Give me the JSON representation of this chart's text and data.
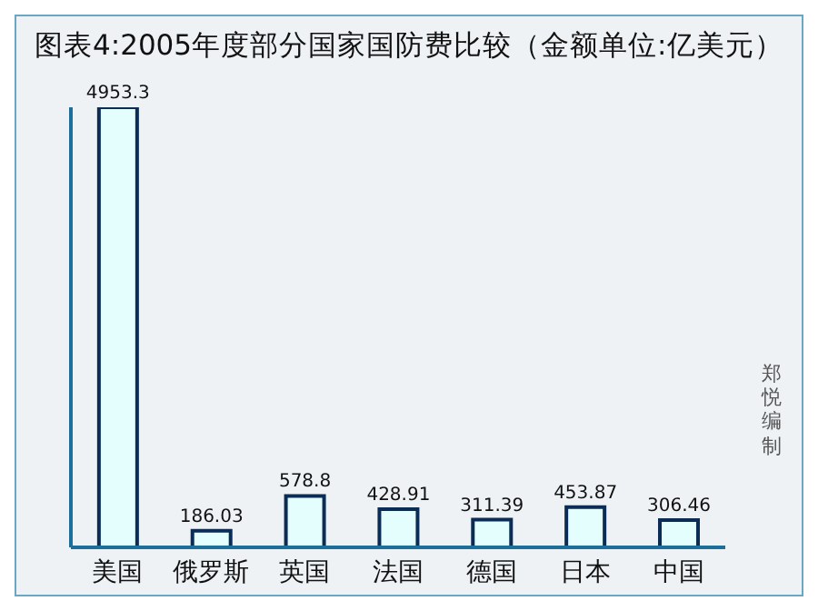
{
  "chart_data": {
    "type": "bar",
    "title": "图表4:2005年度部分国家国防费比较（金额单位:亿美元）",
    "categories": [
      "美国",
      "俄罗斯",
      "英国",
      "法国",
      "德国",
      "日本",
      "中国"
    ],
    "values": [
      4953.3,
      186.03,
      578.8,
      428.91,
      311.39,
      453.87,
      306.46
    ],
    "color": "#e4fdfd",
    "tick_labels": "x",
    "data_labels": true,
    "annotations": [
      "郑悦编制"
    ]
  }
}
